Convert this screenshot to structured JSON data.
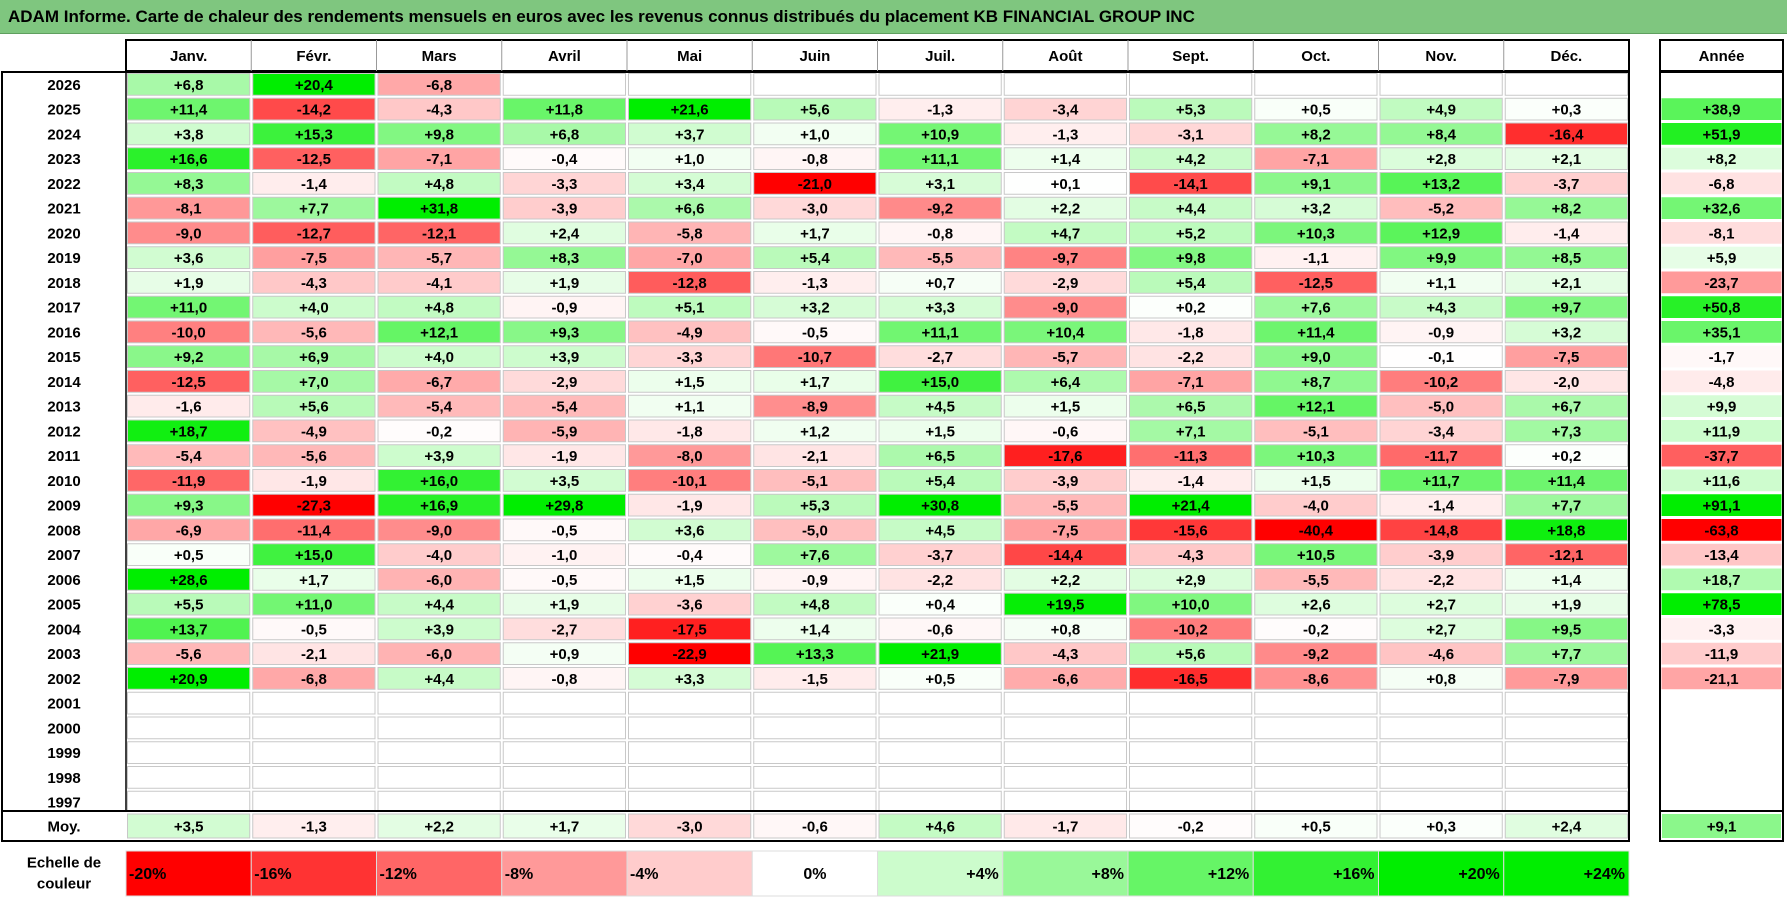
{
  "title": "ADAM Informe. Carte de chaleur des rendements mensuels en euros avec les revenus connus distribués du placement KB FINANCIAL GROUP INC",
  "chart_data": {
    "type": "heatmap",
    "months": [
      "Janv.",
      "Févr.",
      "Mars",
      "Avril",
      "Mai",
      "Juin",
      "Juil.",
      "Août",
      "Sept.",
      "Oct.",
      "Nov.",
      "Déc."
    ],
    "year_header": "Année",
    "average_label": "Moy.",
    "scale_label": [
      "Echelle de",
      "couleur"
    ],
    "rows": [
      {
        "year": "2026",
        "values": [
          "+6,8",
          "+20,4",
          "-6,8",
          "",
          "",
          "",
          "",
          "",
          "",
          "",
          "",
          ""
        ],
        "annual": ""
      },
      {
        "year": "2025",
        "values": [
          "+11,4",
          "-14,2",
          "-4,3",
          "+11,8",
          "+21,6",
          "+5,6",
          "-1,3",
          "-3,4",
          "+5,3",
          "+0,5",
          "+4,9",
          "+0,3"
        ],
        "annual": "+38,9"
      },
      {
        "year": "2024",
        "values": [
          "+3,8",
          "+15,3",
          "+9,8",
          "+6,8",
          "+3,7",
          "+1,0",
          "+10,9",
          "-1,3",
          "-3,1",
          "+8,2",
          "+8,4",
          "-16,4"
        ],
        "annual": "+51,9"
      },
      {
        "year": "2023",
        "values": [
          "+16,6",
          "-12,5",
          "-7,1",
          "-0,4",
          "+1,0",
          "-0,8",
          "+11,1",
          "+1,4",
          "+4,2",
          "-7,1",
          "+2,8",
          "+2,1"
        ],
        "annual": "+8,2"
      },
      {
        "year": "2022",
        "values": [
          "+8,3",
          "-1,4",
          "+4,8",
          "-3,3",
          "+3,4",
          "-21,0",
          "+3,1",
          "+0,1",
          "-14,1",
          "+9,1",
          "+13,2",
          "-3,7"
        ],
        "annual": "-6,8"
      },
      {
        "year": "2021",
        "values": [
          "-8,1",
          "+7,7",
          "+31,8",
          "-3,9",
          "+6,6",
          "-3,0",
          "-9,2",
          "+2,2",
          "+4,4",
          "+3,2",
          "-5,2",
          "+8,2"
        ],
        "annual": "+32,6"
      },
      {
        "year": "2020",
        "values": [
          "-9,0",
          "-12,7",
          "-12,1",
          "+2,4",
          "-5,8",
          "+1,7",
          "-0,8",
          "+4,7",
          "+5,2",
          "+10,3",
          "+12,9",
          "-1,4"
        ],
        "annual": "-8,1"
      },
      {
        "year": "2019",
        "values": [
          "+3,6",
          "-7,5",
          "-5,7",
          "+8,3",
          "-7,0",
          "+5,4",
          "-5,5",
          "-9,7",
          "+9,8",
          "-1,1",
          "+9,9",
          "+8,5"
        ],
        "annual": "+5,9"
      },
      {
        "year": "2018",
        "values": [
          "+1,9",
          "-4,3",
          "-4,1",
          "+1,9",
          "-12,8",
          "-1,3",
          "+0,7",
          "-2,9",
          "+5,4",
          "-12,5",
          "+1,1",
          "+2,1"
        ],
        "annual": "-23,7"
      },
      {
        "year": "2017",
        "values": [
          "+11,0",
          "+4,0",
          "+4,8",
          "-0,9",
          "+5,1",
          "+3,2",
          "+3,3",
          "-9,0",
          "+0,2",
          "+7,6",
          "+4,3",
          "+9,7"
        ],
        "annual": "+50,8"
      },
      {
        "year": "2016",
        "values": [
          "-10,0",
          "-5,6",
          "+12,1",
          "+9,3",
          "-4,9",
          "-0,5",
          "+11,1",
          "+10,4",
          "-1,8",
          "+11,4",
          "-0,9",
          "+3,2"
        ],
        "annual": "+35,1"
      },
      {
        "year": "2015",
        "values": [
          "+9,2",
          "+6,9",
          "+4,0",
          "+3,9",
          "-3,3",
          "-10,7",
          "-2,7",
          "-5,7",
          "-2,2",
          "+9,0",
          "-0,1",
          "-7,5"
        ],
        "annual": "-1,7"
      },
      {
        "year": "2014",
        "values": [
          "-12,5",
          "+7,0",
          "-6,7",
          "-2,9",
          "+1,5",
          "+1,7",
          "+15,0",
          "+6,4",
          "-7,1",
          "+8,7",
          "-10,2",
          "-2,0"
        ],
        "annual": "-4,8"
      },
      {
        "year": "2013",
        "values": [
          "-1,6",
          "+5,6",
          "-5,4",
          "-5,4",
          "+1,1",
          "-8,9",
          "+4,5",
          "+1,5",
          "+6,5",
          "+12,1",
          "-5,0",
          "+6,7"
        ],
        "annual": "+9,9"
      },
      {
        "year": "2012",
        "values": [
          "+18,7",
          "-4,9",
          "-0,2",
          "-5,9",
          "-1,8",
          "+1,2",
          "+1,5",
          "-0,6",
          "+7,1",
          "-5,1",
          "-3,4",
          "+7,3"
        ],
        "annual": "+11,9"
      },
      {
        "year": "2011",
        "values": [
          "-5,4",
          "-5,6",
          "+3,9",
          "-1,9",
          "-8,0",
          "-2,1",
          "+6,5",
          "-17,6",
          "-11,3",
          "+10,3",
          "-11,7",
          "+0,2"
        ],
        "annual": "-37,7"
      },
      {
        "year": "2010",
        "values": [
          "-11,9",
          "-1,9",
          "+16,0",
          "+3,5",
          "-10,1",
          "-5,1",
          "+5,4",
          "-3,9",
          "-1,4",
          "+1,5",
          "+11,7",
          "+11,4"
        ],
        "annual": "+11,6"
      },
      {
        "year": "2009",
        "values": [
          "+9,3",
          "-27,3",
          "+16,9",
          "+29,8",
          "-1,9",
          "+5,3",
          "+30,8",
          "-5,5",
          "+21,4",
          "-4,0",
          "-1,4",
          "+7,7"
        ],
        "annual": "+91,1"
      },
      {
        "year": "2008",
        "values": [
          "-6,9",
          "-11,4",
          "-9,0",
          "-0,5",
          "+3,6",
          "-5,0",
          "+4,5",
          "-7,5",
          "-15,6",
          "-40,4",
          "-14,8",
          "+18,8"
        ],
        "annual": "-63,8"
      },
      {
        "year": "2007",
        "values": [
          "+0,5",
          "+15,0",
          "-4,0",
          "-1,0",
          "-0,4",
          "+7,6",
          "-3,7",
          "-14,4",
          "-4,3",
          "+10,5",
          "-3,9",
          "-12,1"
        ],
        "annual": "-13,4"
      },
      {
        "year": "2006",
        "values": [
          "+28,6",
          "+1,7",
          "-6,0",
          "-0,5",
          "+1,5",
          "-0,9",
          "-2,2",
          "+2,2",
          "+2,9",
          "-5,5",
          "-2,2",
          "+1,4"
        ],
        "annual": "+18,7"
      },
      {
        "year": "2005",
        "values": [
          "+5,5",
          "+11,0",
          "+4,4",
          "+1,9",
          "-3,6",
          "+4,8",
          "+0,4",
          "+19,5",
          "+10,0",
          "+2,6",
          "+2,7",
          "+1,9"
        ],
        "annual": "+78,5"
      },
      {
        "year": "2004",
        "values": [
          "+13,7",
          "-0,5",
          "+3,9",
          "-2,7",
          "-17,5",
          "+1,4",
          "-0,6",
          "+0,8",
          "-10,2",
          "-0,2",
          "+2,7",
          "+9,5"
        ],
        "annual": "-3,3"
      },
      {
        "year": "2003",
        "values": [
          "-5,6",
          "-2,1",
          "-6,0",
          "+0,9",
          "-22,9",
          "+13,3",
          "+21,9",
          "-4,3",
          "+5,6",
          "-9,2",
          "-4,6",
          "+7,7"
        ],
        "annual": "-11,9"
      },
      {
        "year": "2002",
        "values": [
          "+20,9",
          "-6,8",
          "+4,4",
          "-0,8",
          "+3,3",
          "-1,5",
          "+0,5",
          "-6,6",
          "-16,5",
          "-8,6",
          "+0,8",
          "-7,9"
        ],
        "annual": "-21,1"
      },
      {
        "year": "2001",
        "values": [
          "",
          "",
          "",
          "",
          "",
          "",
          "",
          "",
          "",
          "",
          "",
          ""
        ],
        "annual": ""
      },
      {
        "year": "2000",
        "values": [
          "",
          "",
          "",
          "",
          "",
          "",
          "",
          "",
          "",
          "",
          "",
          ""
        ],
        "annual": ""
      },
      {
        "year": "1999",
        "values": [
          "",
          "",
          "",
          "",
          "",
          "",
          "",
          "",
          "",
          "",
          "",
          ""
        ],
        "annual": ""
      },
      {
        "year": "1998",
        "values": [
          "",
          "",
          "",
          "",
          "",
          "",
          "",
          "",
          "",
          "",
          "",
          ""
        ],
        "annual": ""
      },
      {
        "year": "1997",
        "values": [
          "",
          "",
          "",
          "",
          "",
          "",
          "",
          "",
          "",
          "",
          "",
          ""
        ],
        "annual": ""
      }
    ],
    "averages": [
      "+3,5",
      "-1,3",
      "+2,2",
      "+1,7",
      "-3,0",
      "-0,6",
      "+4,6",
      "-1,7",
      "-0,2",
      "+0,5",
      "+0,3",
      "+2,4"
    ],
    "average_annual": "+9,1",
    "color_scale": [
      {
        "label": "-20%",
        "value": -20
      },
      {
        "label": "-16%",
        "value": -16
      },
      {
        "label": "-12%",
        "value": -12
      },
      {
        "label": "-8%",
        "value": -8
      },
      {
        "label": "-4%",
        "value": -4
      },
      {
        "label": "0%",
        "value": 0
      },
      {
        "label": "+4%",
        "value": 4
      },
      {
        "label": "+8%",
        "value": 8
      },
      {
        "label": "+12%",
        "value": 12
      },
      {
        "label": "+16%",
        "value": 16
      },
      {
        "label": "+20%",
        "value": 20
      },
      {
        "label": "+24%",
        "value": 24
      }
    ],
    "colors": {
      "negative": "#ff0000",
      "neutral": "#ffffff",
      "positive": "#00ee00",
      "title_bar": "#7fc67f"
    }
  }
}
